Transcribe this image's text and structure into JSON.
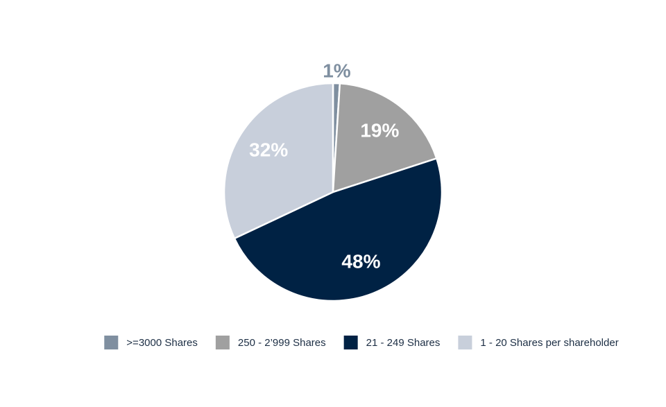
{
  "chart_data": {
    "type": "pie",
    "categories": [
      ">=3000 Shares",
      "250 - 2’999 Shares",
      "21 - 249 Shares",
      "1 - 20 Shares per shareholder"
    ],
    "values": [
      1,
      19,
      48,
      32
    ],
    "value_labels": [
      "1%",
      "19%",
      "48%",
      "32%"
    ],
    "colors": [
      "#7f8fa0",
      "#a0a0a0",
      "#002244",
      "#c8cfdb"
    ],
    "legend": "bottom"
  }
}
